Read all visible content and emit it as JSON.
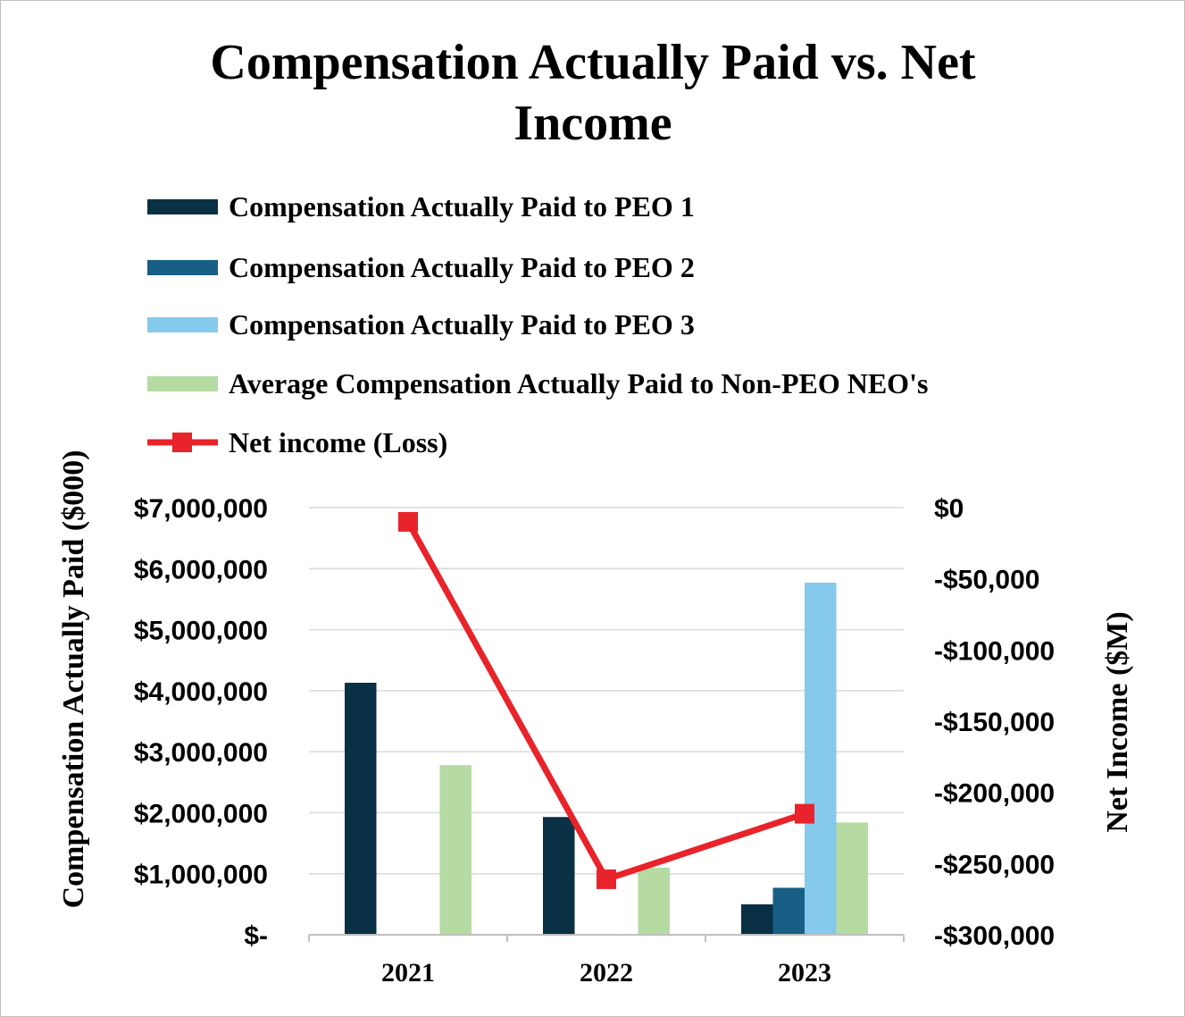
{
  "chart_data": {
    "type": "bar",
    "title_lines": [
      "Compensation Actually Paid vs. Net",
      "Income"
    ],
    "categories": [
      "2021",
      "2022",
      "2023"
    ],
    "y_left": {
      "label": "Compensation Actually Paid ($000)",
      "range": [
        0,
        7000000
      ],
      "step": 1000000,
      "tick_labels": [
        "$-",
        "$1,000,000",
        "$2,000,000",
        "$3,000,000",
        "$4,000,000",
        "$5,000,000",
        "$6,000,000",
        "$7,000,000"
      ]
    },
    "y_right": {
      "label": "Net Income ($M)",
      "range": [
        -300000,
        0
      ],
      "step": 50000,
      "tick_labels": [
        "-$300,000",
        "-$250,000",
        "-$200,000",
        "-$150,000",
        "-$100,000",
        "-$50,000",
        "$0"
      ]
    },
    "series": [
      {
        "name": "Compensation Actually Paid to PEO 1",
        "type": "bar",
        "axis": "left",
        "color": "#0a3045",
        "values": [
          4130000,
          1930000,
          500000
        ]
      },
      {
        "name": "Compensation Actually Paid to PEO 2",
        "type": "bar",
        "axis": "left",
        "color": "#175f84",
        "values": [
          0,
          0,
          770000
        ]
      },
      {
        "name": "Compensation Actually Paid to PEO 3",
        "type": "bar",
        "axis": "left",
        "color": "#85c9ec",
        "values": [
          0,
          0,
          5770000
        ]
      },
      {
        "name": "Average Compensation Actually Paid to Non-PEO NEO's",
        "type": "bar",
        "axis": "left",
        "color": "#b5dba2",
        "values": [
          2780000,
          1100000,
          1840000
        ]
      },
      {
        "name": "Net income (Loss)",
        "type": "line",
        "axis": "right",
        "color": "#e8232a",
        "marker": "square",
        "values": [
          -10000,
          -261000,
          -215000
        ]
      }
    ],
    "grid": true,
    "legend_position": "top"
  }
}
